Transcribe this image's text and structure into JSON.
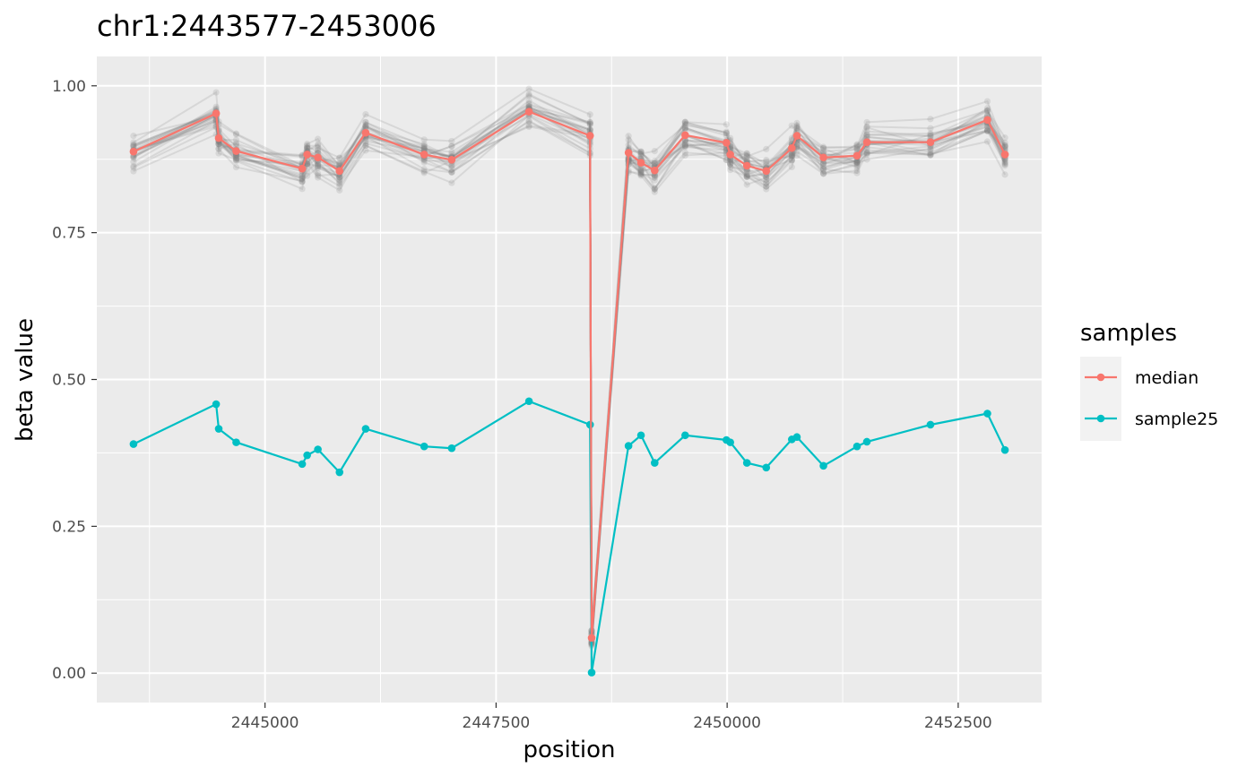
{
  "chart_data": {
    "type": "line",
    "title": "chr1:2443577-2453006",
    "xlabel": "position",
    "ylabel": "beta value",
    "xlim": [
      2443180,
      2453403
    ],
    "ylim": [
      -0.05,
      1.05
    ],
    "x_ticks": [
      2445000,
      2447500,
      2450000,
      2452500
    ],
    "x_tick_labels": [
      "2445000",
      "2447500",
      "2450000",
      "2452500"
    ],
    "y_ticks": [
      0.0,
      0.25,
      0.5,
      0.75,
      1.0
    ],
    "y_tick_labels": [
      "0.00",
      "0.25",
      "0.50",
      "0.75",
      "1.00"
    ],
    "grid": true,
    "legend": {
      "title": "samples",
      "position": "right"
    },
    "background_samples": {
      "color": "#7f7f7f",
      "count": 24
    },
    "x": [
      2443577,
      2444471,
      2444499,
      2444688,
      2445402,
      2445456,
      2445572,
      2445806,
      2446089,
      2446722,
      2447020,
      2447856,
      2448517,
      2448534,
      2448933,
      2449068,
      2449216,
      2449546,
      2449992,
      2450034,
      2450214,
      2450423,
      2450700,
      2450755,
      2451042,
      2451405,
      2451512,
      2452200,
      2452816,
      2453006
    ],
    "series": [
      {
        "name": "median",
        "color": "#F8766D",
        "values": [
          0.888,
          0.953,
          0.911,
          0.889,
          0.859,
          0.883,
          0.878,
          0.855,
          0.92,
          0.883,
          0.874,
          0.956,
          0.915,
          0.06,
          0.886,
          0.869,
          0.856,
          0.916,
          0.903,
          0.883,
          0.864,
          0.855,
          0.894,
          0.915,
          0.878,
          0.881,
          0.904,
          0.904,
          0.942,
          0.883
        ]
      },
      {
        "name": "sample25",
        "color": "#00BFC4",
        "values": [
          0.39,
          0.458,
          0.416,
          0.393,
          0.356,
          0.371,
          0.381,
          0.342,
          0.416,
          0.386,
          0.383,
          0.463,
          0.423,
          0.001,
          0.387,
          0.405,
          0.358,
          0.405,
          0.397,
          0.393,
          0.358,
          0.35,
          0.398,
          0.402,
          0.353,
          0.386,
          0.394,
          0.423,
          0.442,
          0.38
        ]
      }
    ]
  }
}
